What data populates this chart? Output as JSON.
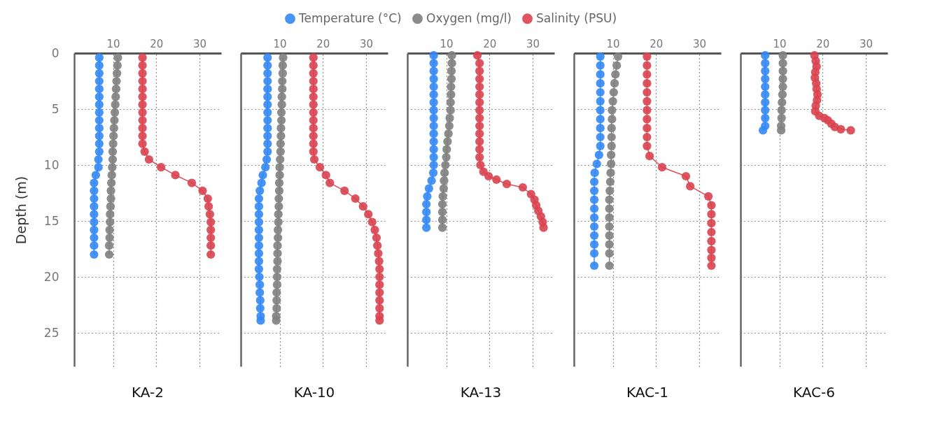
{
  "chart_data": [
    {
      "type": "line",
      "title": "KA-2",
      "ylabel": "Depth (m)",
      "xlim": [
        1,
        35
      ],
      "xticks": [
        10,
        20,
        30
      ],
      "ylim": [
        28,
        0
      ],
      "yticks": [
        0,
        5,
        10,
        15,
        20,
        25
      ],
      "grid": true,
      "legend": "top",
      "marker": "circle",
      "series": [
        {
          "name": "Temperature (°C)",
          "color": "#3388f5",
          "x": [
            6.8,
            6.8,
            6.8,
            6.8,
            6.8,
            6.8,
            6.8,
            6.8,
            6.8,
            6.8,
            6.8,
            6.8,
            6.8,
            6.6,
            6.6,
            6.0,
            5.6,
            5.6,
            5.6,
            5.6,
            5.6,
            5.6,
            5.6,
            5.6,
            5.6,
            5.6
          ],
          "values": [
            0.4,
            1.1,
            1.8,
            2.5,
            3.2,
            3.9,
            4.6,
            5.3,
            6.0,
            6.7,
            7.4,
            8.1,
            8.8,
            9.5,
            10.2,
            10.9,
            11.6,
            12.3,
            13.0,
            13.7,
            14.4,
            15.1,
            15.8,
            16.5,
            17.2,
            18.0
          ]
        },
        {
          "name": "Oxygen (mg/l)",
          "color": "#7f7f7f",
          "x": [
            11.1,
            11.0,
            10.9,
            10.8,
            10.7,
            10.6,
            10.5,
            10.4,
            10.3,
            10.2,
            10.1,
            10.0,
            9.9,
            9.9,
            9.8,
            9.7,
            9.6,
            9.5,
            9.5,
            9.4,
            9.3,
            9.3,
            9.2,
            9.2,
            9.1,
            9.1
          ],
          "values": [
            0.4,
            1.1,
            1.8,
            2.5,
            3.2,
            3.9,
            4.6,
            5.3,
            6.0,
            6.7,
            7.4,
            8.1,
            8.8,
            9.5,
            10.2,
            10.9,
            11.6,
            12.3,
            13.0,
            13.7,
            14.4,
            15.1,
            15.8,
            16.5,
            17.2,
            18.0
          ]
        },
        {
          "name": "Salinity (PSU)",
          "color": "#d9434f",
          "x": [
            16.8,
            16.8,
            16.8,
            16.8,
            16.8,
            16.8,
            16.8,
            16.8,
            16.8,
            16.8,
            16.8,
            16.8,
            17.3,
            18.3,
            21.1,
            24.4,
            28.2,
            30.7,
            31.9,
            32.1,
            32.4,
            32.6,
            32.6,
            32.6,
            32.6,
            32.6
          ],
          "values": [
            0.4,
            1.1,
            1.8,
            2.5,
            3.2,
            3.9,
            4.6,
            5.3,
            6.0,
            6.7,
            7.4,
            8.1,
            8.8,
            9.5,
            10.2,
            10.9,
            11.6,
            12.3,
            13.0,
            13.7,
            14.4,
            15.1,
            15.8,
            16.5,
            17.2,
            18.0
          ]
        }
      ]
    },
    {
      "type": "line",
      "title": "KA-10",
      "xlim": [
        1,
        35
      ],
      "xticks": [
        10,
        20,
        30
      ],
      "ylim": [
        28,
        0
      ],
      "yticks": [
        0,
        5,
        10,
        15,
        20,
        25
      ],
      "grid": true,
      "marker": "circle",
      "tick_labels": "x",
      "series": [
        {
          "color": "#3388f5",
          "x": [
            7.2,
            7.2,
            7.2,
            7.2,
            7.2,
            7.2,
            7.2,
            7.2,
            7.2,
            7.2,
            7.2,
            7.2,
            7.2,
            7.0,
            6.7,
            6.1,
            5.8,
            5.4,
            5.2,
            5.2,
            5.2,
            5.2,
            5.2,
            5.2,
            5.2,
            5.2,
            5.2,
            5.2,
            5.3,
            5.4,
            5.4,
            5.5,
            5.5,
            5.6,
            5.6
          ],
          "values": [
            0.4,
            1.1,
            1.8,
            2.5,
            3.2,
            3.9,
            4.6,
            5.3,
            6.0,
            6.7,
            7.4,
            8.1,
            8.8,
            9.5,
            10.2,
            10.9,
            11.6,
            12.3,
            13.0,
            13.7,
            14.4,
            15.1,
            15.8,
            16.5,
            17.2,
            17.9,
            18.6,
            19.3,
            20.0,
            20.7,
            21.4,
            22.1,
            22.8,
            23.5,
            23.9
          ]
        },
        {
          "color": "#7f7f7f",
          "x": [
            10.8,
            10.7,
            10.7,
            10.6,
            10.6,
            10.5,
            10.5,
            10.4,
            10.4,
            10.3,
            10.3,
            10.2,
            10.2,
            10.1,
            10.0,
            10.0,
            9.9,
            9.9,
            9.8,
            9.8,
            9.7,
            9.7,
            9.6,
            9.6,
            9.5,
            9.5,
            9.5,
            9.4,
            9.4,
            9.4,
            9.3,
            9.3,
            9.3,
            9.2,
            9.2
          ],
          "values": [
            0.4,
            1.1,
            1.8,
            2.5,
            3.2,
            3.9,
            4.6,
            5.3,
            6.0,
            6.7,
            7.4,
            8.1,
            8.8,
            9.5,
            10.2,
            10.9,
            11.6,
            12.3,
            13.0,
            13.7,
            14.4,
            15.1,
            15.8,
            16.5,
            17.2,
            17.9,
            18.6,
            19.3,
            20.0,
            20.7,
            21.4,
            22.1,
            22.8,
            23.5,
            23.9
          ]
        },
        {
          "color": "#d9434f",
          "x": [
            17.8,
            17.8,
            17.8,
            17.8,
            17.8,
            17.8,
            17.8,
            17.8,
            17.8,
            17.8,
            17.8,
            17.8,
            17.8,
            18.0,
            19.3,
            20.7,
            21.6,
            25.0,
            27.5,
            29.3,
            30.5,
            31.4,
            32.0,
            32.4,
            32.6,
            32.8,
            33.0,
            33.1,
            33.1,
            33.1,
            33.1,
            33.1,
            33.1,
            33.1,
            33.1
          ],
          "values": [
            0.4,
            1.1,
            1.8,
            2.5,
            3.2,
            3.9,
            4.6,
            5.3,
            6.0,
            6.7,
            7.4,
            8.1,
            8.8,
            9.5,
            10.2,
            10.9,
            11.6,
            12.3,
            13.0,
            13.7,
            14.4,
            15.1,
            15.8,
            16.5,
            17.2,
            17.9,
            18.6,
            19.3,
            20.0,
            20.7,
            21.4,
            22.1,
            22.8,
            23.5,
            23.9
          ]
        }
      ]
    },
    {
      "type": "line",
      "title": "KA-13",
      "xlim": [
        1,
        35
      ],
      "xticks": [
        10,
        20,
        30
      ],
      "ylim": [
        28,
        0
      ],
      "yticks": [
        0,
        5,
        10,
        15,
        20,
        25
      ],
      "grid": true,
      "marker": "circle",
      "tick_labels": "x",
      "series": [
        {
          "color": "#3388f5",
          "x": [
            7.1,
            7.1,
            7.1,
            7.1,
            7.1,
            7.1,
            7.1,
            7.1,
            7.1,
            7.1,
            7.1,
            7.1,
            7.1,
            7.1,
            7.1,
            7.0,
            6.6,
            6.0,
            5.6,
            5.4,
            5.4,
            5.4,
            5.4
          ],
          "values": [
            0.2,
            0.9,
            1.6,
            2.3,
            3.0,
            3.7,
            4.4,
            5.1,
            5.8,
            6.5,
            7.2,
            7.9,
            8.6,
            9.3,
            10.0,
            10.7,
            11.4,
            12.1,
            12.8,
            13.5,
            14.2,
            14.9,
            15.6
          ]
        },
        {
          "color": "#7f7f7f",
          "x": [
            11.3,
            11.3,
            11.2,
            11.2,
            11.1,
            11.1,
            11.0,
            11.0,
            10.8,
            10.7,
            10.5,
            10.3,
            10.1,
            10.0,
            9.8,
            9.6,
            9.5,
            9.4,
            9.2,
            9.1,
            9.1,
            9.1,
            9.1
          ],
          "values": [
            0.2,
            0.9,
            1.6,
            2.3,
            3.0,
            3.7,
            4.4,
            5.1,
            5.8,
            6.5,
            7.2,
            7.9,
            8.6,
            9.3,
            10.0,
            10.7,
            11.4,
            12.1,
            12.8,
            13.5,
            14.2,
            14.9,
            15.6
          ]
        },
        {
          "color": "#d9434f",
          "x": [
            17.2,
            17.7,
            17.7,
            17.7,
            17.7,
            17.7,
            17.7,
            17.7,
            17.7,
            17.7,
            17.7,
            17.7,
            17.7,
            17.7,
            17.9,
            18.6,
            19.8,
            21.6,
            24.0,
            27.7,
            29.6,
            30.4,
            30.8,
            31.3,
            31.9,
            32.3,
            32.5
          ],
          "values": [
            0.2,
            0.9,
            1.6,
            2.3,
            3.0,
            3.7,
            4.4,
            5.1,
            5.8,
            6.5,
            7.2,
            7.9,
            8.6,
            9.3,
            10.0,
            10.6,
            11.0,
            11.3,
            11.7,
            12.0,
            12.6,
            13.1,
            13.6,
            14.1,
            14.6,
            15.1,
            15.6
          ]
        }
      ]
    },
    {
      "type": "line",
      "title": "KAC-1",
      "xlim": [
        1,
        35
      ],
      "xticks": [
        10,
        20,
        30
      ],
      "ylim": [
        28,
        0
      ],
      "yticks": [
        0,
        5,
        10,
        15,
        20,
        25
      ],
      "grid": true,
      "marker": "circle",
      "tick_labels": "x",
      "series": [
        {
          "color": "#3388f5",
          "x": [
            7.1,
            7.1,
            7.1,
            7.1,
            7.1,
            7.1,
            7.1,
            7.1,
            7.1,
            7.1,
            7.1,
            6.8,
            6.3,
            5.8,
            5.7,
            5.7,
            5.7,
            5.7,
            5.7,
            5.7,
            5.7,
            5.7,
            5.7,
            5.7
          ],
          "values": [
            0.3,
            1.1,
            1.9,
            2.7,
            3.5,
            4.3,
            5.1,
            5.9,
            6.7,
            7.5,
            8.3,
            9.1,
            9.9,
            10.7,
            11.5,
            12.3,
            13.1,
            13.9,
            14.7,
            15.5,
            16.3,
            17.1,
            17.9,
            19.0
          ]
        },
        {
          "color": "#7f7f7f",
          "x": [
            11.2,
            10.9,
            10.6,
            10.4,
            10.2,
            10.0,
            9.8,
            9.8,
            9.7,
            9.7,
            9.7,
            9.6,
            9.6,
            9.5,
            9.4,
            9.3,
            9.2,
            9.2,
            9.2,
            9.2,
            9.2,
            9.2,
            9.2,
            9.2
          ],
          "values": [
            0.3,
            1.1,
            1.9,
            2.7,
            3.5,
            4.3,
            5.1,
            5.9,
            6.7,
            7.5,
            8.3,
            9.1,
            9.9,
            10.7,
            11.5,
            12.3,
            13.1,
            13.9,
            14.7,
            15.5,
            16.3,
            17.1,
            17.9,
            19.0
          ]
        },
        {
          "color": "#d9434f",
          "x": [
            17.9,
            17.9,
            17.9,
            17.9,
            17.9,
            17.9,
            17.9,
            17.9,
            17.9,
            17.9,
            17.9,
            18.5,
            21.4,
            26.9,
            27.9,
            32.1,
            32.8,
            32.8,
            32.8,
            32.8,
            32.8,
            32.8,
            32.8,
            32.8
          ],
          "values": [
            0.3,
            1.1,
            1.9,
            2.7,
            3.5,
            4.3,
            5.1,
            5.9,
            6.7,
            7.5,
            8.3,
            9.2,
            10.2,
            11.0,
            11.9,
            12.8,
            13.6,
            14.4,
            15.2,
            16.0,
            16.8,
            17.6,
            18.3,
            19.0
          ]
        }
      ]
    },
    {
      "type": "line",
      "title": "KAC-6",
      "xlim": [
        1,
        35
      ],
      "xticks": [
        10,
        20,
        30
      ],
      "ylim": [
        28,
        0
      ],
      "yticks": [
        0,
        5,
        10,
        15,
        20,
        25
      ],
      "grid": true,
      "marker": "circle",
      "tick_labels": "x",
      "series": [
        {
          "color": "#3388f5",
          "x": [
            6.7,
            6.7,
            6.7,
            6.7,
            6.7,
            6.7,
            6.7,
            6.7,
            6.7,
            6.7,
            6.2
          ],
          "values": [
            0.2,
            0.9,
            1.6,
            2.3,
            3.0,
            3.7,
            4.4,
            5.1,
            5.8,
            6.5,
            6.9
          ]
        },
        {
          "color": "#7f7f7f",
          "x": [
            10.8,
            10.8,
            10.8,
            10.8,
            10.8,
            10.7,
            10.6,
            10.5,
            10.5,
            10.4,
            10.4
          ],
          "values": [
            0.2,
            0.9,
            1.6,
            2.3,
            3.0,
            3.7,
            4.4,
            5.1,
            5.8,
            6.5,
            6.9
          ]
        },
        {
          "color": "#d9434f",
          "x": [
            18.1,
            18.4,
            18.6,
            18.3,
            18.2,
            18.5,
            18.6,
            18.8,
            18.7,
            18.4,
            18.3,
            19.2,
            20.4,
            21.2,
            22.0,
            22.8,
            24.2,
            26.5
          ],
          "values": [
            0.2,
            0.7,
            1.2,
            1.7,
            2.2,
            2.7,
            3.2,
            3.7,
            4.2,
            4.7,
            5.2,
            5.6,
            5.8,
            6.0,
            6.3,
            6.6,
            6.8,
            6.9
          ]
        }
      ]
    }
  ]
}
